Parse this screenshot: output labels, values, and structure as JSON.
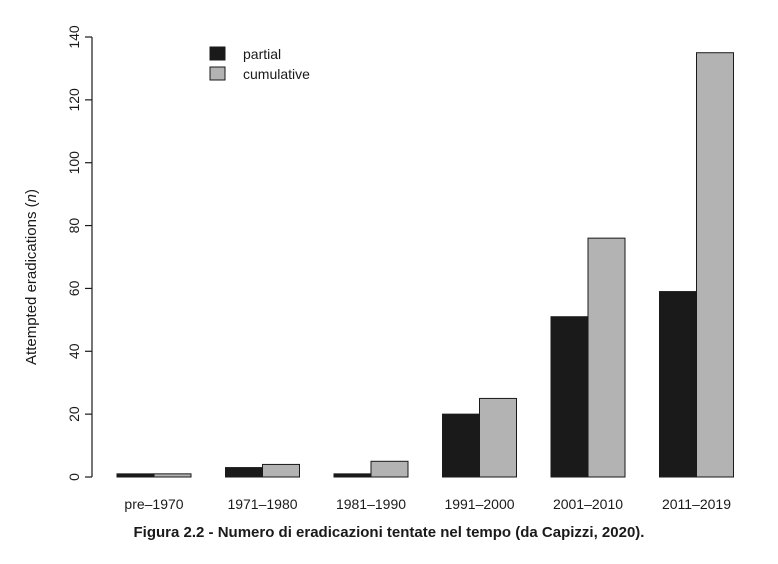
{
  "caption": "Figura 2.2 - Numero di eradicazioni tentate nel tempo (da Capizzi, 2020).",
  "chart_data": {
    "type": "bar",
    "title": "",
    "xlabel": "",
    "ylabel": "Attempted eradications (n)",
    "ylabel_main": "Attempted eradications (",
    "ylabel_italic": "n",
    "ylabel_close": ")",
    "ylim": [
      0,
      140
    ],
    "yticks": [
      0,
      20,
      40,
      60,
      80,
      100,
      120,
      140
    ],
    "categories": [
      "pre–1970",
      "1971–1980",
      "1981–1990",
      "1991–2000",
      "2001–2010",
      "2011–2019"
    ],
    "series": [
      {
        "name": "partial",
        "color": "#1a1a1a",
        "values": [
          1,
          3,
          1,
          20,
          51,
          59
        ]
      },
      {
        "name": "cumulative",
        "color": "#b3b3b3",
        "values": [
          1,
          4,
          5,
          25,
          76,
          135
        ]
      }
    ],
    "legend_position": "top-left",
    "grid": false
  }
}
